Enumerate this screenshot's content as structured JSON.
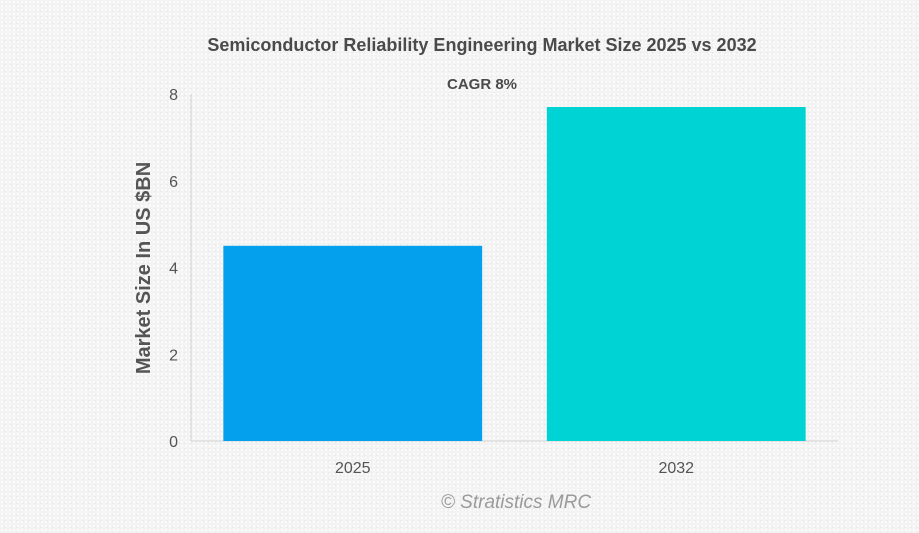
{
  "chart_data": {
    "type": "bar",
    "title": "Semiconductor Reliability Engineering Market Size 2025 vs 2032",
    "subtitle": "CAGR 8%",
    "ylabel": "Market Size In US $BN",
    "xlabel": "",
    "categories": [
      "2025",
      "2032"
    ],
    "values": [
      4.5,
      7.7
    ],
    "colors": [
      "#04a0ed",
      "#00d3d3"
    ],
    "ylim": [
      0,
      8
    ],
    "yticks": [
      "0",
      "2",
      "4",
      "6",
      "8"
    ],
    "grid": false,
    "legend": "none"
  },
  "watermark": "© Stratistics MRC"
}
